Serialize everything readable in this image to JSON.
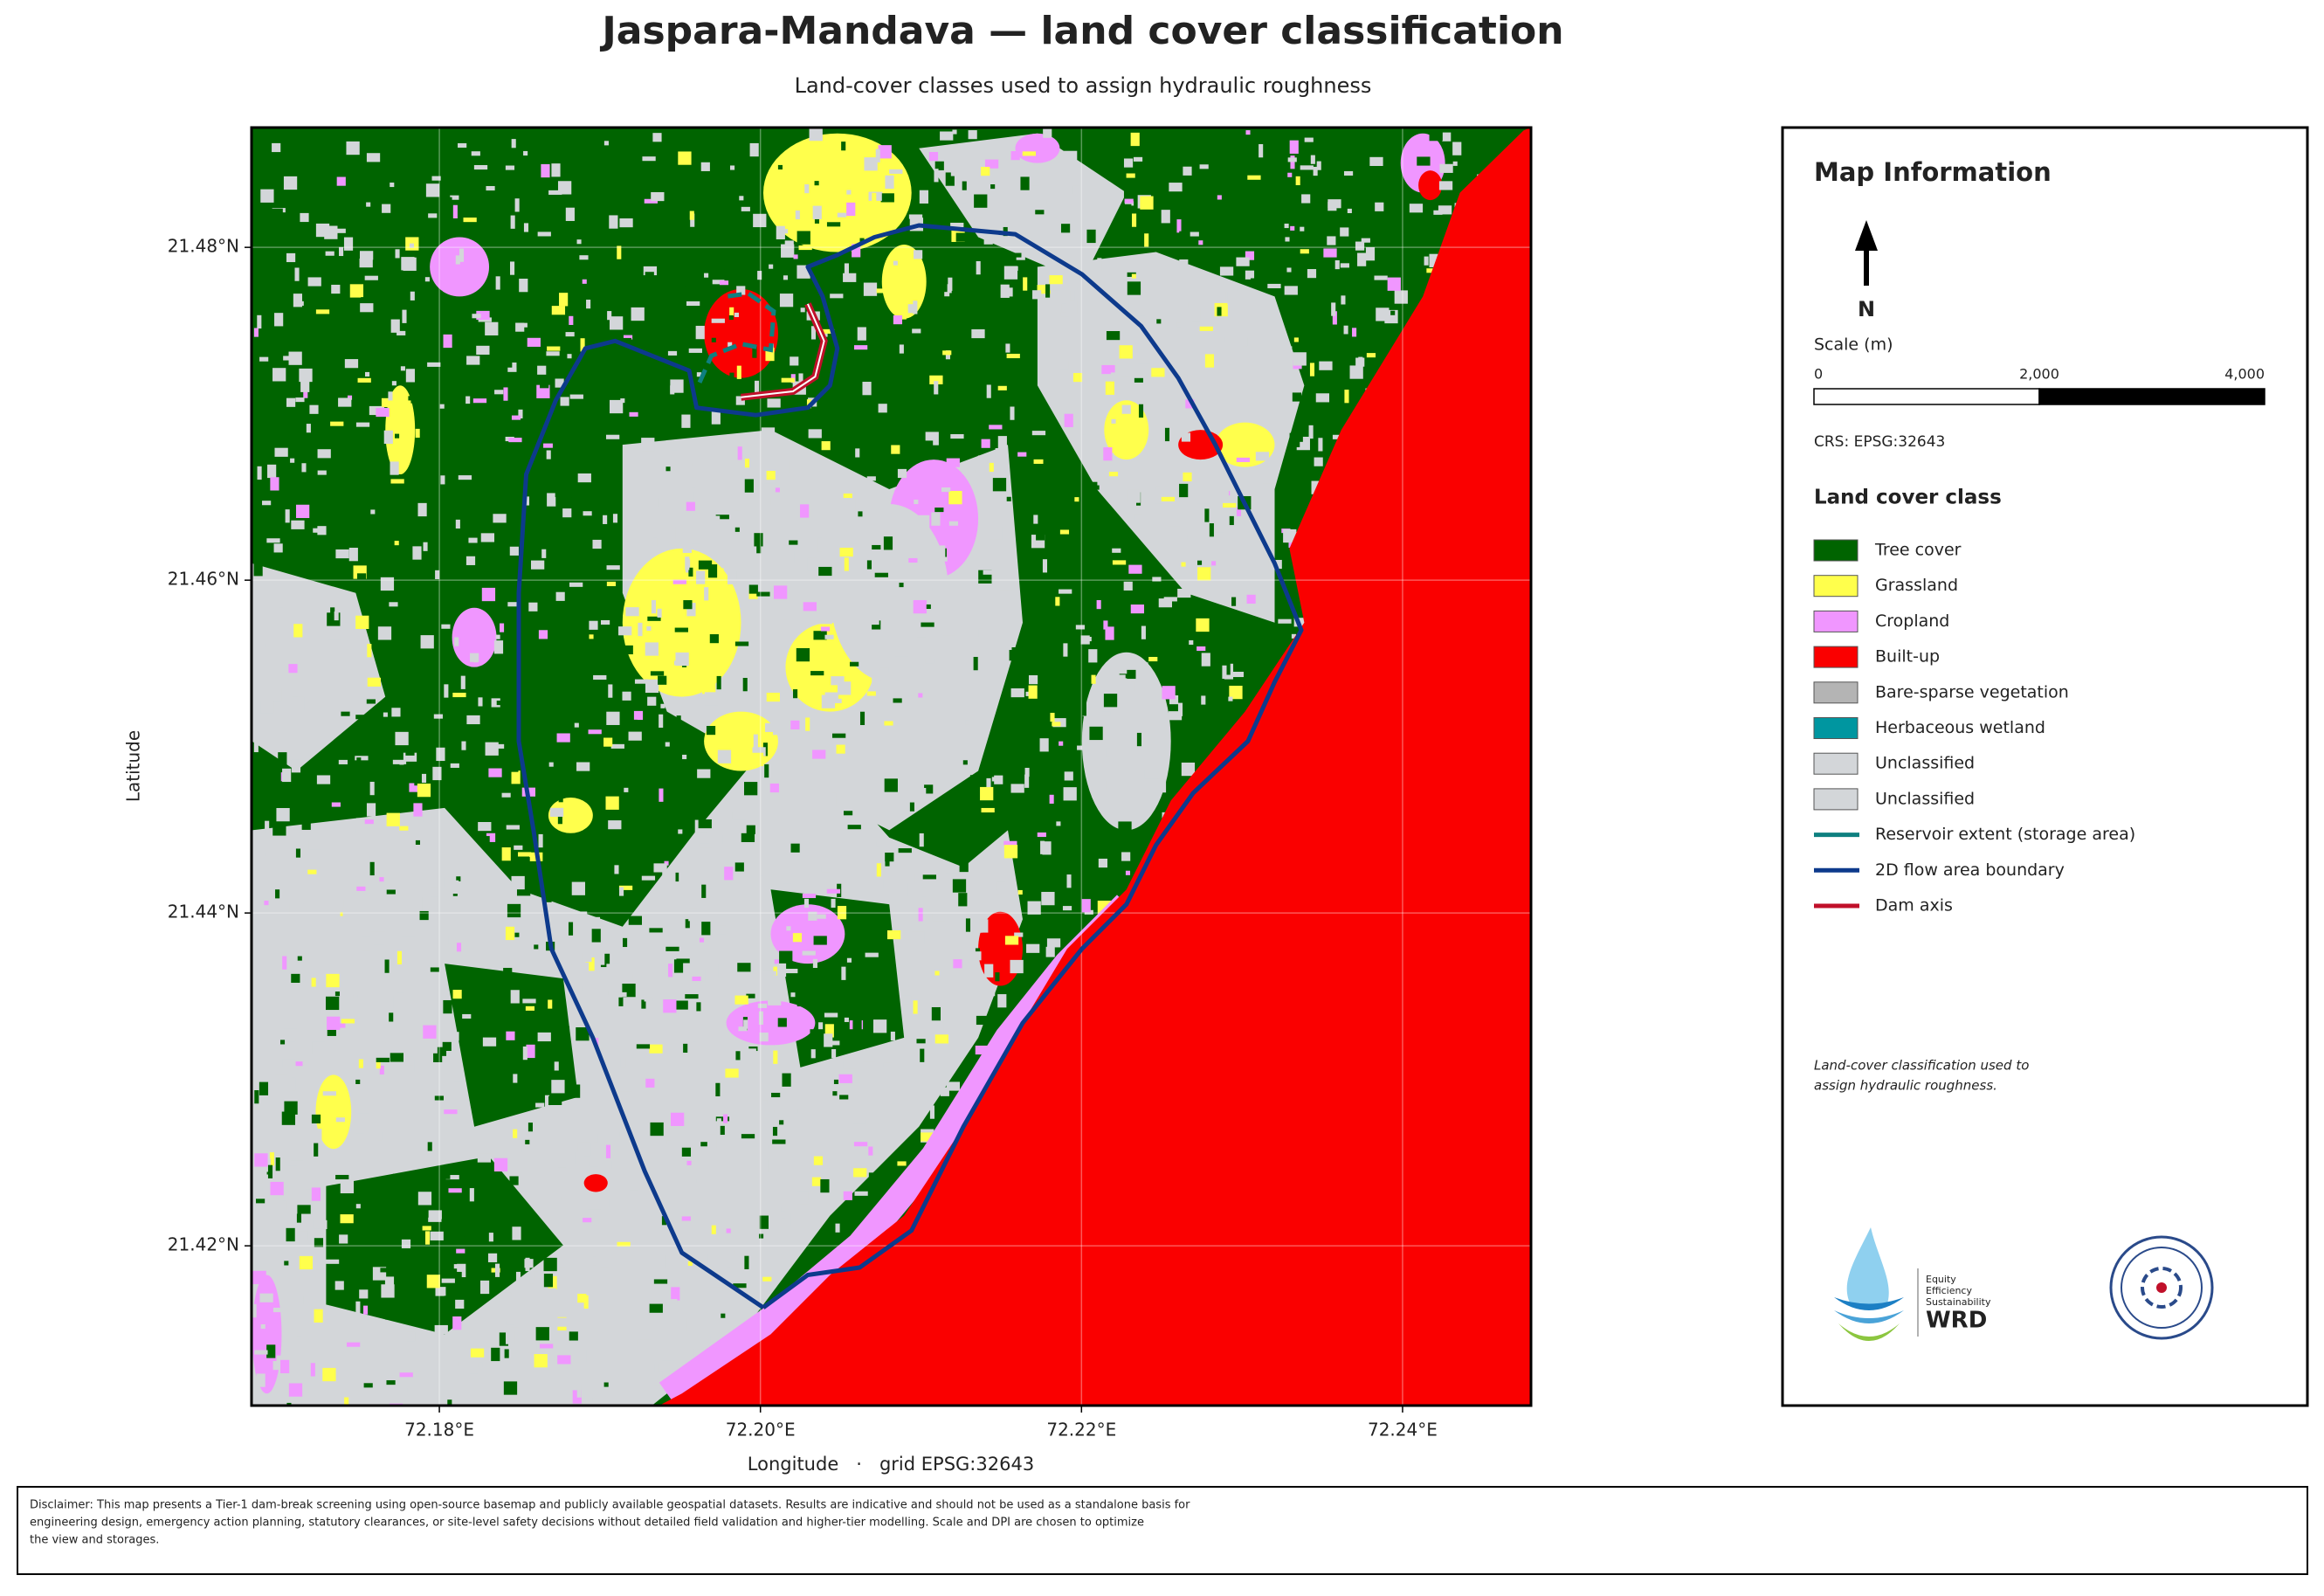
{
  "title": "Jaspara-Mandava — land cover classification",
  "subtitle": "Land-cover classes used to assign hydraulic roughness",
  "map": {
    "x_label": "Longitude   ·   grid EPSG:32643",
    "y_label": "Latitude",
    "xlim": [
      72.1683,
      72.248
    ],
    "ylim": [
      21.4104,
      21.4872
    ],
    "xticks": [
      {
        "value": 72.18,
        "label": "72.18°E"
      },
      {
        "value": 72.2,
        "label": "72.20°E"
      },
      {
        "value": 72.22,
        "label": "72.22°E"
      },
      {
        "value": 72.24,
        "label": "72.24°E"
      }
    ],
    "yticks": [
      {
        "value": 21.42,
        "label": "21.42°N"
      },
      {
        "value": 21.44,
        "label": "21.44°N"
      },
      {
        "value": 21.46,
        "label": "21.46°N"
      },
      {
        "value": 21.48,
        "label": "21.48°N"
      }
    ],
    "grid": true
  },
  "legend": {
    "title": "Map Information",
    "north": "N",
    "scale": {
      "title": "Scale (m)",
      "ticks": [
        0,
        {
          "value": 2000,
          "label": "2,000"
        },
        {
          "value": 4000,
          "label": "4,000"
        }
      ]
    },
    "crs": "CRS: EPSG:32643",
    "class_title": "Land cover class",
    "items": [
      {
        "label": "Tree cover",
        "color": "#006400",
        "symbol": "patch"
      },
      {
        "label": "Grassland",
        "color": "#ffff4c",
        "symbol": "patch"
      },
      {
        "label": "Cropland",
        "color": "#f096ff",
        "symbol": "patch"
      },
      {
        "label": "Built-up",
        "color": "#fa0000",
        "symbol": "patch"
      },
      {
        "label": "Bare-sparse vegetation",
        "color": "#b4b4b4",
        "symbol": "patch"
      },
      {
        "label": "Herbaceous wetland",
        "color": "#0096a0",
        "symbol": "patch"
      },
      {
        "label": "Unclassified",
        "color": "#d3d6d9",
        "symbol": "patch"
      },
      {
        "label": "Unclassified",
        "color": "#d3d6d9",
        "symbol": "patch"
      },
      {
        "label": "Reservoir extent (storage area)",
        "color": "#0e8080",
        "symbol": "line"
      },
      {
        "label": "2D flow area boundary",
        "color": "#0d3a8c",
        "symbol": "line"
      },
      {
        "label": "Dam axis",
        "color": "#c0102a",
        "symbol": "line"
      }
    ],
    "note": [
      "Land-cover classification used to",
      "assign hydraulic roughness."
    ]
  },
  "logo": {
    "lines": [
      "Equity",
      "Efficiency",
      "Sustainability"
    ],
    "name": "WRD"
  },
  "disclaimer": [
    "Disclaimer: This map presents a Tier-1 dam-break screening using open-source basemap and publicly available geospatial datasets. Results are indicative and should not be used as a standalone basis for",
    "engineering design, emergency action planning, statutory clearances, or site-level safety decisions without detailed field validation and higher-tier modelling. Scale and DPI are chosen to optimize",
    "the view and storages."
  ]
}
